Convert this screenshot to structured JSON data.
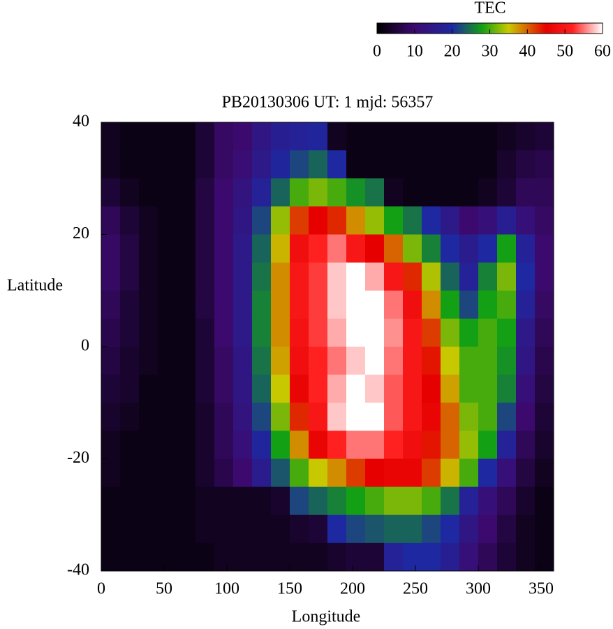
{
  "chart_data": {
    "type": "heatmap",
    "title": "PB20130306  UT: 1  mjd: 56357",
    "xlabel": "Longitude",
    "ylabel": "Latitude",
    "colorbar_label": "TEC",
    "x": [
      7.5,
      22.5,
      37.5,
      52.5,
      67.5,
      82.5,
      97.5,
      112.5,
      127.5,
      142.5,
      157.5,
      172.5,
      187.5,
      202.5,
      217.5,
      232.5,
      247.5,
      262.5,
      277.5,
      292.5,
      307.5,
      322.5,
      337.5,
      352.5
    ],
    "y": [
      37.5,
      32.5,
      27.5,
      22.5,
      17.5,
      12.5,
      7.5,
      2.5,
      -2.5,
      -7.5,
      -12.5,
      -17.5,
      -22.5,
      -27.5,
      -32.5,
      -37.5
    ],
    "values": [
      [
        3,
        2,
        2,
        2,
        2,
        5,
        9,
        10,
        14,
        17,
        18,
        19,
        3,
        2,
        2,
        2,
        2,
        2,
        2,
        2,
        2,
        3,
        4,
        5
      ],
      [
        3,
        2,
        2,
        2,
        2,
        5,
        9,
        11,
        15,
        19,
        22,
        24,
        20,
        2,
        2,
        2,
        2,
        2,
        2,
        2,
        2,
        4,
        6,
        7
      ],
      [
        5,
        3,
        2,
        2,
        2,
        6,
        10,
        13,
        18,
        24,
        30,
        32,
        30,
        27,
        25,
        3,
        2,
        2,
        2,
        2,
        3,
        5,
        8,
        8
      ],
      [
        8,
        5,
        3,
        2,
        2,
        6,
        10,
        14,
        22,
        33,
        42,
        45,
        43,
        38,
        33,
        28,
        25,
        20,
        15,
        10,
        12,
        17,
        12,
        9
      ],
      [
        9,
        6,
        3,
        2,
        2,
        6,
        10,
        15,
        24,
        36,
        48,
        52,
        55,
        50,
        45,
        40,
        32,
        26,
        20,
        16,
        20,
        28,
        18,
        10
      ],
      [
        9,
        6,
        3,
        2,
        2,
        6,
        10,
        15,
        25,
        38,
        50,
        53,
        58,
        60,
        57,
        50,
        43,
        34,
        24,
        18,
        26,
        32,
        20,
        10
      ],
      [
        8,
        5,
        3,
        2,
        2,
        6,
        10,
        15,
        26,
        38,
        50,
        53,
        58,
        60,
        60,
        55,
        48,
        38,
        28,
        22,
        28,
        30,
        18,
        9
      ],
      [
        7,
        5,
        3,
        2,
        2,
        5,
        10,
        15,
        26,
        38,
        49,
        53,
        57,
        60,
        60,
        56,
        50,
        42,
        32,
        28,
        30,
        28,
        15,
        8
      ],
      [
        6,
        4,
        3,
        2,
        2,
        5,
        9,
        14,
        25,
        37,
        48,
        52,
        55,
        58,
        60,
        55,
        50,
        44,
        35,
        30,
        30,
        27,
        14,
        7
      ],
      [
        5,
        4,
        2,
        2,
        2,
        5,
        9,
        14,
        24,
        35,
        46,
        52,
        57,
        60,
        58,
        54,
        50,
        45,
        37,
        30,
        30,
        26,
        12,
        6
      ],
      [
        4,
        3,
        2,
        2,
        2,
        4,
        8,
        13,
        22,
        32,
        43,
        50,
        58,
        60,
        60,
        54,
        50,
        46,
        40,
        32,
        30,
        22,
        10,
        5
      ],
      [
        3,
        2,
        2,
        2,
        2,
        4,
        8,
        12,
        19,
        28,
        38,
        46,
        52,
        55,
        55,
        52,
        48,
        44,
        40,
        33,
        28,
        18,
        8,
        4
      ],
      [
        3,
        2,
        2,
        2,
        2,
        4,
        7,
        10,
        16,
        23,
        30,
        35,
        38,
        42,
        45,
        46,
        46,
        42,
        36,
        30,
        20,
        12,
        6,
        3
      ],
      [
        2,
        2,
        2,
        2,
        2,
        3,
        3,
        3,
        3,
        4,
        22,
        24,
        26,
        28,
        30,
        32,
        32,
        30,
        25,
        18,
        12,
        8,
        4,
        2
      ],
      [
        2,
        2,
        2,
        2,
        2,
        3,
        3,
        3,
        3,
        3,
        4,
        5,
        20,
        22,
        23,
        24,
        24,
        22,
        20,
        14,
        10,
        6,
        3,
        2
      ],
      [
        2,
        2,
        2,
        2,
        2,
        2,
        3,
        3,
        3,
        3,
        3,
        3,
        4,
        5,
        5,
        18,
        20,
        20,
        17,
        12,
        8,
        5,
        3,
        2
      ]
    ],
    "xlim": [
      0,
      360
    ],
    "ylim": [
      -40,
      40
    ],
    "xticks": [
      0,
      50,
      100,
      150,
      200,
      250,
      300,
      350
    ],
    "yticks": [
      -40,
      -20,
      0,
      20,
      40
    ],
    "zlim": [
      0,
      60
    ],
    "zticks": [
      0,
      10,
      20,
      30,
      40,
      50,
      60
    ],
    "colormap": [
      {
        "value": 0,
        "color": "#000000"
      },
      {
        "value": 10,
        "color": "#3c0a6e"
      },
      {
        "value": 20,
        "color": "#1e28a0"
      },
      {
        "value": 28,
        "color": "#14a014"
      },
      {
        "value": 35,
        "color": "#c8c800"
      },
      {
        "value": 45,
        "color": "#e60000"
      },
      {
        "value": 52,
        "color": "#ff2020"
      },
      {
        "value": 60,
        "color": "#ffffff"
      }
    ]
  }
}
